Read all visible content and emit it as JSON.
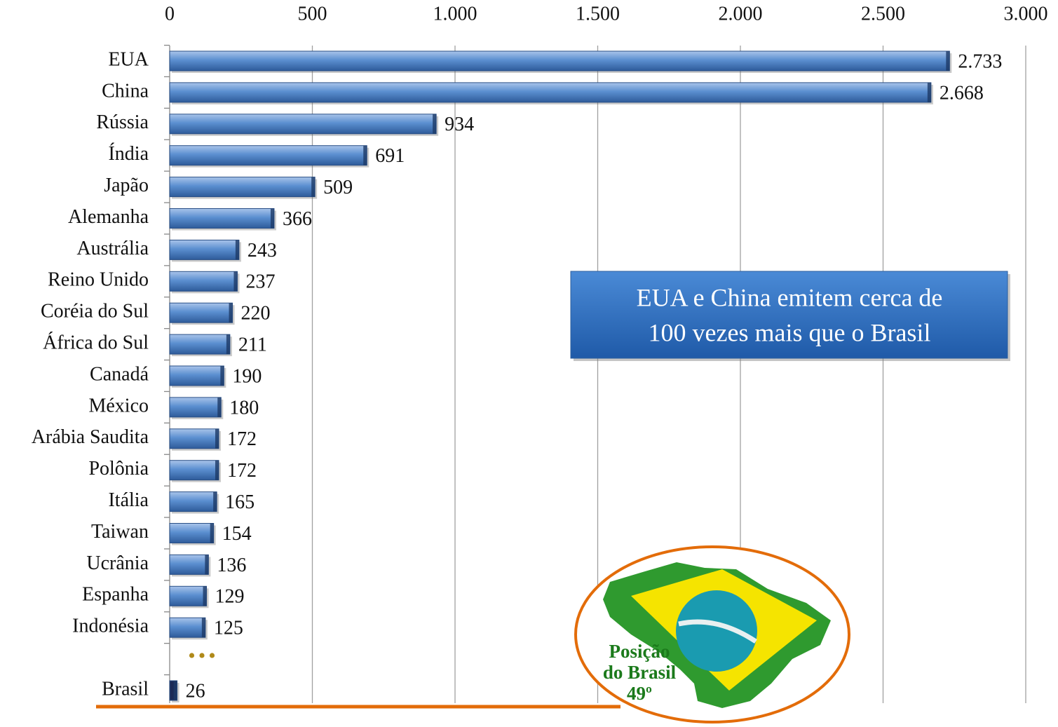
{
  "chart_data": {
    "type": "bar",
    "orientation": "horizontal",
    "categories": [
      "EUA",
      "China",
      "Rússia",
      "Índia",
      "Japão",
      "Alemanha",
      "Austrália",
      "Reino Unido",
      "Coréia do Sul",
      "África do Sul",
      "Canadá",
      "México",
      "Arábia Saudita",
      "Polônia",
      "Itália",
      "Taiwan",
      "Ucrânia",
      "Espanha",
      "Indonésia",
      null,
      "Brasil"
    ],
    "values": [
      2733,
      2668,
      934,
      691,
      509,
      366,
      243,
      237,
      220,
      211,
      190,
      180,
      172,
      172,
      165,
      154,
      136,
      129,
      125,
      null,
      26
    ],
    "value_labels": [
      "2.733",
      "2.668",
      "934",
      "691",
      "509",
      "366",
      "243",
      "237",
      "220",
      "211",
      "190",
      "180",
      "172",
      "172",
      "165",
      "154",
      "136",
      "129",
      "125",
      null,
      "26"
    ],
    "colors": [
      "#4f81bd",
      "#4f81bd",
      "#4f81bd",
      "#4f81bd",
      "#4f81bd",
      "#4f81bd",
      "#4f81bd",
      "#4f81bd",
      "#4f81bd",
      "#4f81bd",
      "#4f81bd",
      "#4f81bd",
      "#4f81bd",
      "#4f81bd",
      "#4f81bd",
      "#4f81bd",
      "#4f81bd",
      "#4f81bd",
      "#4f81bd",
      null,
      "#1b2a55"
    ],
    "xlim": [
      0,
      3000
    ],
    "xticks": [
      0,
      500,
      {
        "value": 1000,
        "label": "1.000"
      },
      {
        "value": 1500,
        "label": "1.500"
      },
      {
        "value": 2000,
        "label": "2.000"
      },
      {
        "value": 2500,
        "label": "2.500"
      },
      {
        "value": 3000,
        "label": "3.000"
      }
    ],
    "grid": true,
    "gap_marker": "•••",
    "callout": [
      "EUA e China emitem cerca de",
      "100 vezes mais que o Brasil"
    ],
    "badge": [
      "Posição",
      "do Brasil",
      "49º"
    ]
  }
}
